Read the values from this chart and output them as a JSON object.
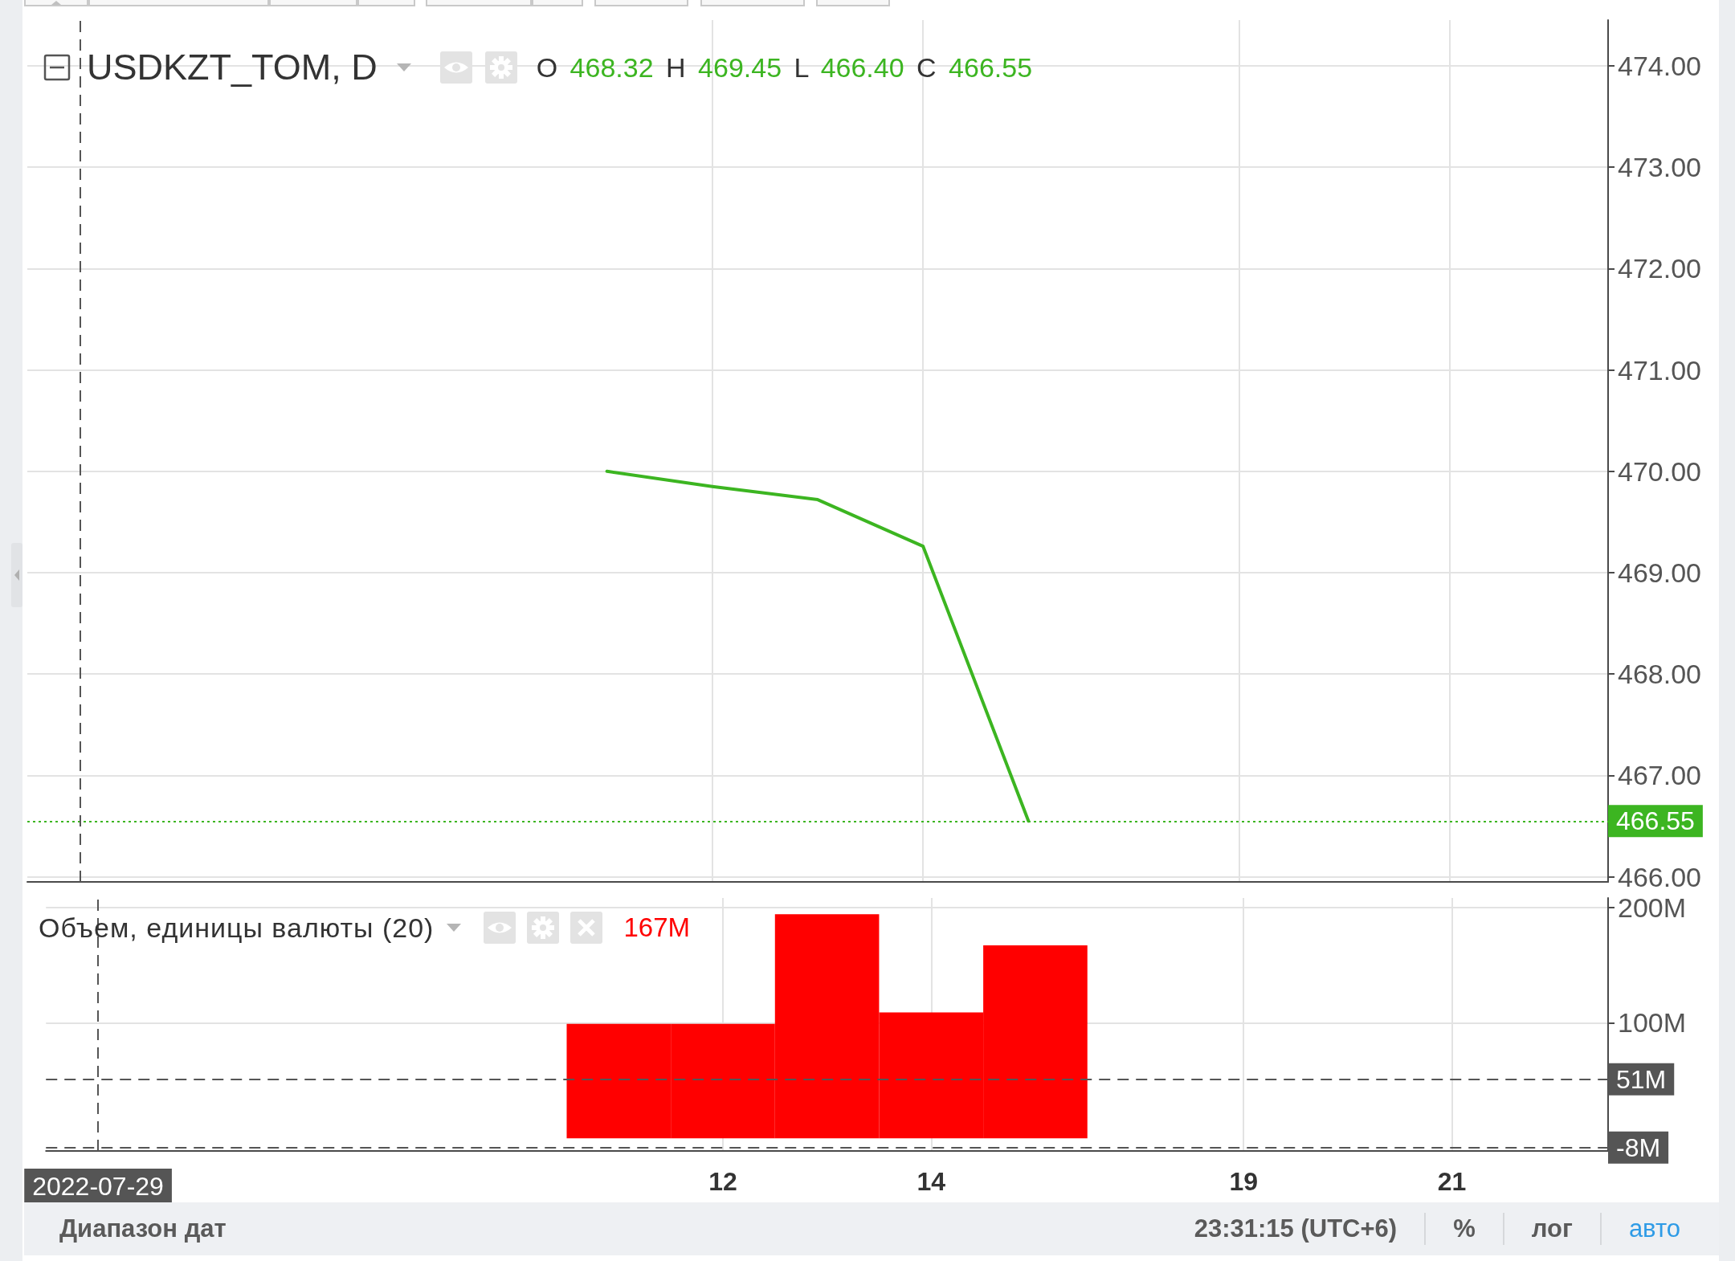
{
  "chart_data": [
    {
      "type": "line",
      "title": "USDKZT_TOM, D",
      "subtitle": "O 468.32 H 469.45 L 466.40 C 466.55",
      "categories": [
        "2022-07-29",
        null,
        null,
        null,
        null,
        null,
        "12",
        null,
        "14",
        null,
        null,
        "19",
        null,
        "21",
        null
      ],
      "series": [
        {
          "color": "#3cb521",
          "values": [
            null,
            null,
            null,
            null,
            null,
            470.0,
            469.85,
            469.72,
            469.26,
            466.55,
            null,
            null,
            null,
            null,
            null
          ]
        }
      ],
      "ylim": [
        465.95,
        474.45
      ],
      "yticks": [
        {
          "value": 466,
          "label": "466.00"
        },
        {
          "value": 467,
          "label": "467.00"
        },
        {
          "value": 468,
          "label": "468.00"
        },
        {
          "value": 469,
          "label": "469.00"
        },
        {
          "value": 470,
          "label": "470.00"
        },
        {
          "value": 471,
          "label": "471.00"
        },
        {
          "value": 472,
          "label": "472.00"
        },
        {
          "value": 473,
          "label": "473.00"
        },
        {
          "value": 474,
          "label": "474.00"
        }
      ],
      "grid": true,
      "tick_labels": "y",
      "ref_lines": [
        {
          "axis": "y",
          "value": 466.55,
          "label": "466.55",
          "color": "#3cb521",
          "line_style": "dotted"
        },
        {
          "axis": "x",
          "value": "2022-07-29",
          "color": "#555555",
          "line_style": "dashed"
        }
      ]
    },
    {
      "type": "bar",
      "title": "Объем, единицы валюты (20)",
      "subtitle": "167M",
      "categories": [
        "2022-07-29",
        null,
        null,
        null,
        null,
        null,
        "12",
        null,
        "14",
        null,
        null,
        "19",
        null,
        "21",
        null
      ],
      "series": [
        {
          "color": "#ff0000",
          "values": [
            null,
            null,
            null,
            null,
            null,
            99,
            99,
            194,
            109,
            167,
            null,
            null,
            null,
            null,
            null
          ]
        }
      ],
      "ylim": [
        -11,
        208
      ],
      "yticks": [
        {
          "value": 100,
          "label": "100M"
        },
        {
          "value": 200,
          "label": "200M"
        }
      ],
      "grid": true,
      "ref_lines": [
        {
          "axis": "y",
          "value": 51,
          "label": "51M",
          "color": "#555555",
          "line_style": "dashed"
        },
        {
          "axis": "y",
          "value": -8,
          "label": "-8M",
          "color": "#555555",
          "line_style": "dashed"
        },
        {
          "axis": "x",
          "value": "2022-07-29",
          "color": "#555555",
          "line_style": "dashed"
        }
      ],
      "annotations": [
        "Диапазон дат",
        "23:31:15 (UTC+6)",
        "%",
        "лог",
        "авто"
      ]
    }
  ]
}
